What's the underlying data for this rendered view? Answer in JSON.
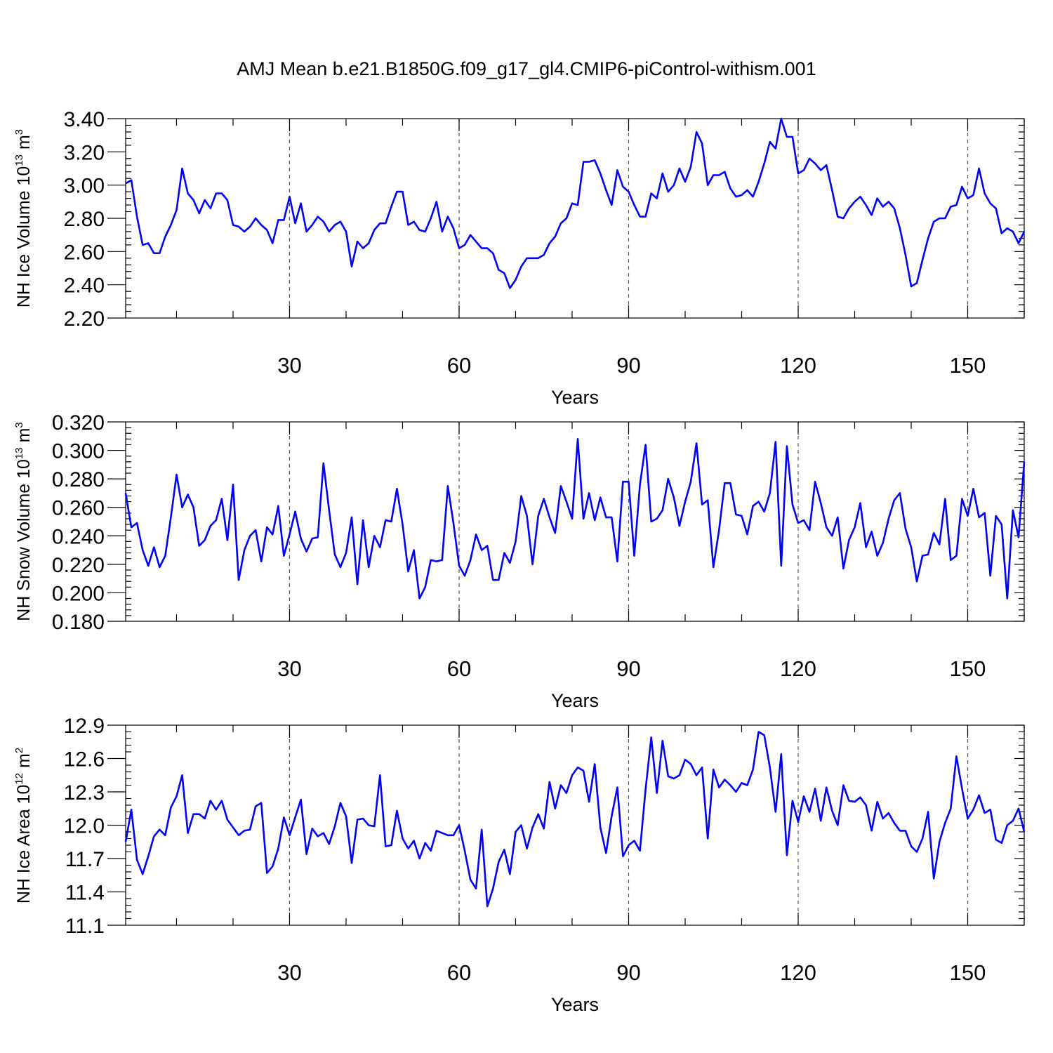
{
  "title": "AMJ Mean b.e21.B1850G.f09_g17_gl4.CMIP6-piControl-withism.001",
  "colors": {
    "series": "#0000ff",
    "axes": "#000000",
    "grid": "#555555"
  },
  "chart_data": [
    {
      "type": "line",
      "ylabel": {
        "text": "NH Ice Volume 10",
        "sup": "13",
        "unit": " m",
        "unit_sup": "3"
      },
      "xlabel": "Years",
      "xlim": [
        1,
        160
      ],
      "ylim": [
        2.2,
        3.4
      ],
      "x_ticks": [
        30,
        60,
        90,
        120,
        150
      ],
      "y_ticks": [
        "2.20",
        "2.40",
        "2.60",
        "2.80",
        "3.00",
        "3.20",
        "3.40"
      ],
      "y_tick_values": [
        2.2,
        2.4,
        2.6,
        2.8,
        3.0,
        3.2,
        3.4
      ],
      "grid": "vertical dashed at major x ticks",
      "x_start": 1,
      "series": [
        {
          "values": [
            3.01,
            3.03,
            2.81,
            2.64,
            2.65,
            2.59,
            2.59,
            2.69,
            2.76,
            2.85,
            3.1,
            2.95,
            2.91,
            2.83,
            2.91,
            2.86,
            2.95,
            2.95,
            2.91,
            2.76,
            2.75,
            2.72,
            2.75,
            2.8,
            2.76,
            2.73,
            2.65,
            2.79,
            2.79,
            2.93,
            2.77,
            2.89,
            2.72,
            2.76,
            2.81,
            2.78,
            2.72,
            2.76,
            2.78,
            2.72,
            2.51,
            2.66,
            2.62,
            2.65,
            2.73,
            2.77,
            2.77,
            2.87,
            2.96,
            2.96,
            2.76,
            2.78,
            2.73,
            2.72,
            2.8,
            2.9,
            2.72,
            2.81,
            2.74,
            2.62,
            2.64,
            2.7,
            2.66,
            2.62,
            2.62,
            2.59,
            2.49,
            2.47,
            2.38,
            2.43,
            2.51,
            2.56,
            2.56,
            2.56,
            2.58,
            2.65,
            2.69,
            2.77,
            2.8,
            2.89,
            2.88,
            3.14,
            3.14,
            3.15,
            3.07,
            2.97,
            2.88,
            3.09,
            2.99,
            2.96,
            2.88,
            2.81,
            2.81,
            2.95,
            2.92,
            3.07,
            2.96,
            3.0,
            3.1,
            3.02,
            3.11,
            3.32,
            3.25,
            3.0,
            3.06,
            3.06,
            3.08,
            2.98,
            2.93,
            2.94,
            2.97,
            2.93,
            3.02,
            3.13,
            3.26,
            3.22,
            3.4,
            3.29,
            3.29,
            3.07,
            3.09,
            3.16,
            3.13,
            3.09,
            3.12,
            2.97,
            2.81,
            2.8,
            2.86,
            2.9,
            2.93,
            2.88,
            2.82,
            2.92,
            2.87,
            2.9,
            2.86,
            2.74,
            2.58,
            2.39,
            2.41,
            2.55,
            2.68,
            2.78,
            2.8,
            2.8,
            2.87,
            2.88,
            2.99,
            2.92,
            2.94,
            3.1,
            2.95,
            2.89,
            2.86,
            2.71,
            2.74,
            2.72,
            2.65,
            2.72
          ]
        }
      ]
    },
    {
      "type": "line",
      "ylabel": {
        "text": "NH Snow Volume 10",
        "sup": "13",
        "unit": " m",
        "unit_sup": "3"
      },
      "xlabel": "Years",
      "xlim": [
        1,
        160
      ],
      "ylim": [
        0.18,
        0.32
      ],
      "x_ticks": [
        30,
        60,
        90,
        120,
        150
      ],
      "y_ticks": [
        "0.180",
        "0.200",
        "0.220",
        "0.240",
        "0.260",
        "0.280",
        "0.300",
        "0.320"
      ],
      "y_tick_values": [
        0.18,
        0.2,
        0.22,
        0.24,
        0.26,
        0.28,
        0.3,
        0.32
      ],
      "grid": "vertical dashed at major x ticks",
      "x_start": 1,
      "series": [
        {
          "values": [
            0.27,
            0.246,
            0.249,
            0.23,
            0.219,
            0.232,
            0.218,
            0.226,
            0.253,
            0.283,
            0.26,
            0.269,
            0.26,
            0.233,
            0.237,
            0.247,
            0.251,
            0.266,
            0.237,
            0.276,
            0.209,
            0.23,
            0.24,
            0.244,
            0.222,
            0.246,
            0.241,
            0.261,
            0.226,
            0.241,
            0.257,
            0.238,
            0.229,
            0.238,
            0.239,
            0.291,
            0.258,
            0.227,
            0.218,
            0.228,
            0.253,
            0.206,
            0.251,
            0.218,
            0.24,
            0.232,
            0.251,
            0.25,
            0.273,
            0.248,
            0.215,
            0.23,
            0.196,
            0.204,
            0.223,
            0.222,
            0.223,
            0.275,
            0.249,
            0.219,
            0.212,
            0.223,
            0.241,
            0.23,
            0.233,
            0.209,
            0.209,
            0.228,
            0.221,
            0.236,
            0.268,
            0.254,
            0.22,
            0.254,
            0.266,
            0.253,
            0.242,
            0.275,
            0.264,
            0.252,
            0.308,
            0.252,
            0.27,
            0.251,
            0.267,
            0.253,
            0.253,
            0.222,
            0.278,
            0.278,
            0.226,
            0.276,
            0.304,
            0.25,
            0.252,
            0.258,
            0.28,
            0.267,
            0.247,
            0.264,
            0.278,
            0.305,
            0.262,
            0.265,
            0.218,
            0.244,
            0.277,
            0.277,
            0.255,
            0.254,
            0.241,
            0.261,
            0.264,
            0.257,
            0.27,
            0.306,
            0.219,
            0.303,
            0.262,
            0.249,
            0.251,
            0.244,
            0.278,
            0.263,
            0.246,
            0.24,
            0.253,
            0.217,
            0.237,
            0.246,
            0.263,
            0.232,
            0.243,
            0.226,
            0.235,
            0.252,
            0.265,
            0.27,
            0.245,
            0.232,
            0.208,
            0.226,
            0.227,
            0.242,
            0.234,
            0.266,
            0.223,
            0.226,
            0.266,
            0.254,
            0.273,
            0.253,
            0.256,
            0.212,
            0.254,
            0.248,
            0.196,
            0.258,
            0.239,
            0.292
          ]
        }
      ]
    },
    {
      "type": "line",
      "ylabel": {
        "text": "NH Ice Area 10",
        "sup": "12",
        "unit": " m",
        "unit_sup": "2"
      },
      "xlabel": "Years",
      "xlim": [
        1,
        160
      ],
      "ylim": [
        11.1,
        12.9
      ],
      "x_ticks": [
        30,
        60,
        90,
        120,
        150
      ],
      "y_ticks": [
        "11.1",
        "11.4",
        "11.7",
        "12.0",
        "12.3",
        "12.6",
        "12.9"
      ],
      "y_tick_values": [
        11.1,
        11.4,
        11.7,
        12.0,
        12.3,
        12.6,
        12.9
      ],
      "grid": "vertical dashed at major x ticks",
      "x_start": 1,
      "series": [
        {
          "values": [
            11.85,
            12.14,
            11.69,
            11.56,
            11.72,
            11.9,
            11.96,
            11.91,
            12.16,
            12.26,
            12.45,
            11.93,
            12.1,
            12.1,
            12.06,
            12.22,
            12.14,
            12.22,
            12.05,
            11.98,
            11.91,
            11.95,
            11.96,
            12.17,
            12.2,
            11.57,
            11.63,
            11.79,
            12.07,
            11.91,
            12.07,
            12.23,
            11.74,
            11.97,
            11.9,
            11.93,
            11.83,
            11.99,
            12.2,
            12.08,
            11.66,
            12.05,
            12.06,
            12.0,
            11.99,
            12.45,
            11.81,
            11.82,
            12.13,
            11.88,
            11.79,
            11.86,
            11.7,
            11.84,
            11.77,
            11.95,
            11.93,
            11.91,
            11.91,
            12.0,
            11.77,
            11.51,
            11.43,
            11.96,
            11.27,
            11.43,
            11.67,
            11.78,
            11.56,
            11.94,
            12.0,
            11.79,
            11.98,
            12.1,
            11.97,
            12.39,
            12.15,
            12.36,
            12.29,
            12.45,
            12.52,
            12.49,
            12.21,
            12.55,
            11.98,
            11.75,
            12.08,
            12.34,
            11.72,
            11.82,
            11.86,
            11.77,
            12.32,
            12.79,
            12.29,
            12.76,
            12.44,
            12.42,
            12.45,
            12.59,
            12.55,
            12.45,
            12.52,
            11.88,
            12.5,
            12.34,
            12.41,
            12.36,
            12.3,
            12.38,
            12.36,
            12.5,
            12.84,
            12.81,
            12.52,
            12.12,
            12.64,
            11.73,
            12.22,
            12.03,
            12.26,
            12.12,
            12.33,
            12.04,
            12.34,
            12.13,
            12.0,
            12.36,
            12.22,
            12.21,
            12.25,
            12.18,
            11.95,
            12.21,
            12.06,
            12.11,
            12.02,
            11.95,
            11.95,
            11.81,
            11.76,
            11.88,
            12.12,
            11.52,
            11.85,
            12.02,
            12.15,
            12.62,
            12.33,
            12.06,
            12.14,
            12.27,
            12.11,
            12.14,
            11.87,
            11.84,
            12.0,
            12.04,
            12.15,
            11.94
          ]
        }
      ]
    }
  ]
}
